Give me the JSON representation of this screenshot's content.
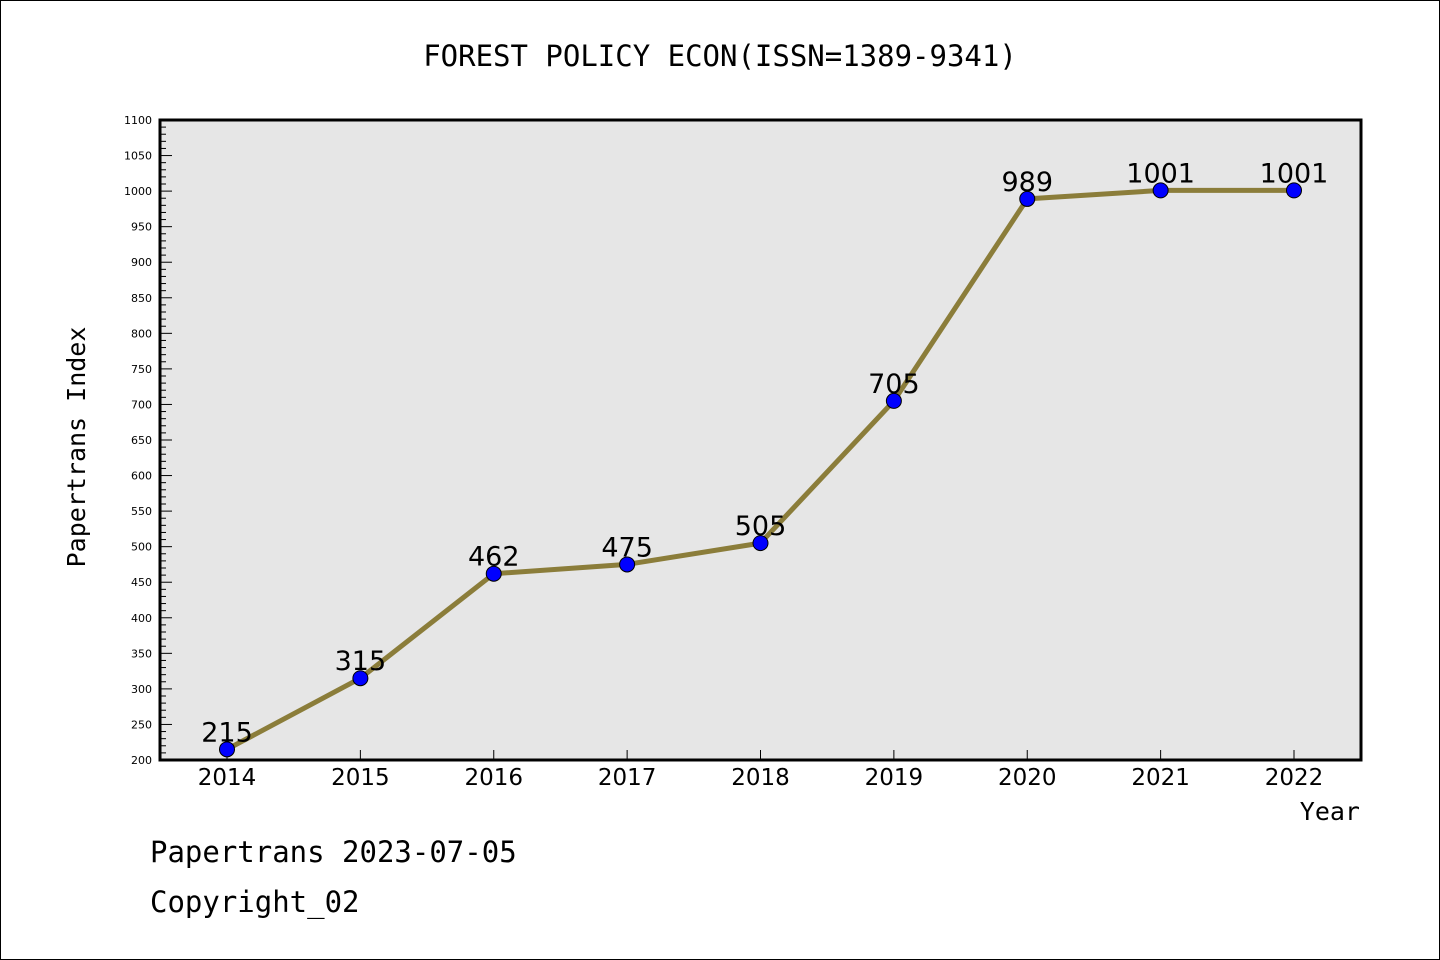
{
  "chart_data": {
    "type": "line",
    "title": "FOREST POLICY ECON(ISSN=1389-9341)",
    "xlabel": "Year",
    "ylabel": "Papertrans Index",
    "x": [
      "2014",
      "2015",
      "2016",
      "2017",
      "2018",
      "2019",
      "2020",
      "2021",
      "2022"
    ],
    "values": [
      215,
      315,
      462,
      475,
      505,
      705,
      989,
      1001,
      1001
    ],
    "data_labels": [
      "215",
      "315",
      "462",
      "475",
      "505",
      "705",
      "989",
      "1001",
      "1001"
    ],
    "ylim": [
      200,
      1100
    ],
    "yticks": [
      "200",
      "250",
      "300",
      "350",
      "400",
      "450",
      "500",
      "550",
      "600",
      "650",
      "700",
      "750",
      "800",
      "850",
      "900",
      "950",
      "1000",
      "1050",
      "1100"
    ],
    "grid": false,
    "line_color": "#8b7d3a",
    "marker_color": "#0000ff",
    "plot_background": "#e6e6e6"
  },
  "footer": {
    "line1": "Papertrans 2023-07-05",
    "line2": "Copyright_02"
  }
}
